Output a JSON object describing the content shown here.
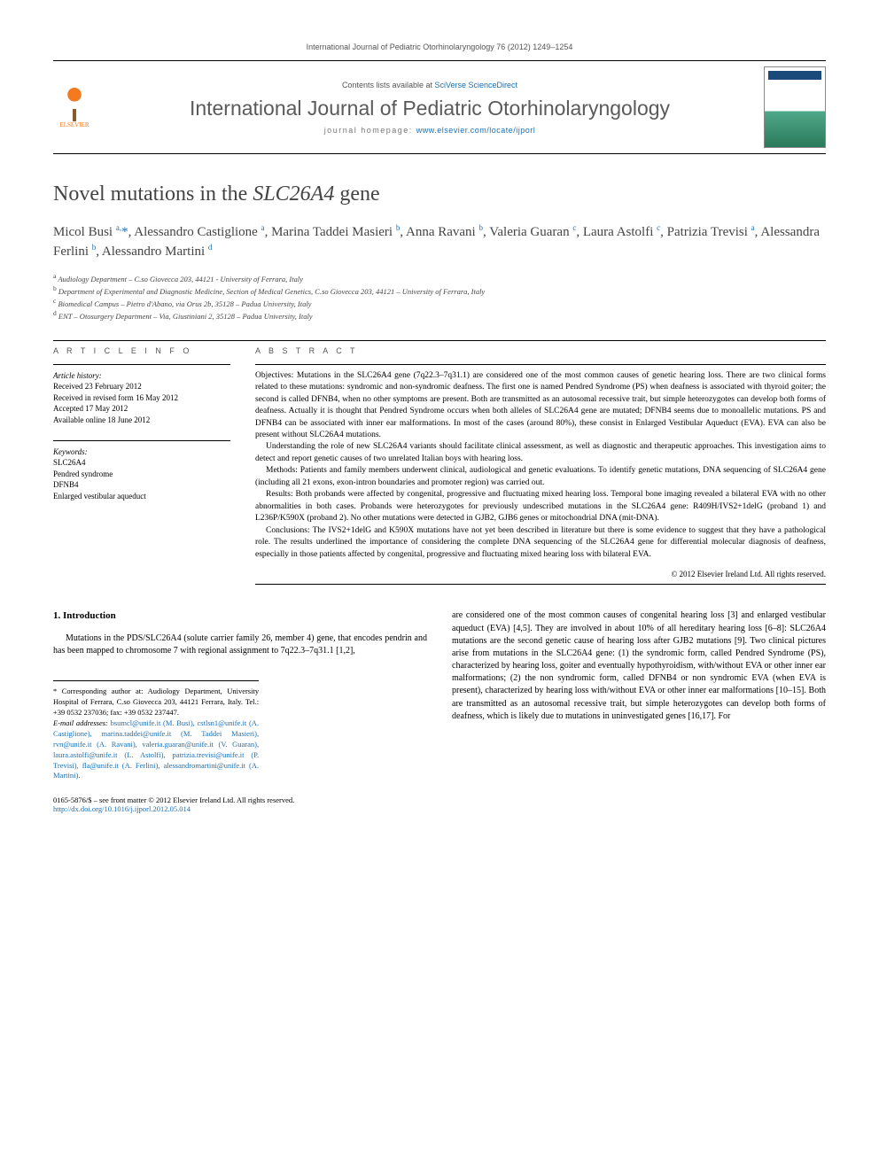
{
  "journal_header": "International Journal of Pediatric Otorhinolaryngology 76 (2012) 1249–1254",
  "masthead": {
    "contents_prefix": "Contents lists available at ",
    "contents_link": "SciVerse ScienceDirect",
    "journal_title": "International Journal of Pediatric Otorhinolaryngology",
    "homepage_prefix": "journal homepage: ",
    "homepage_link": "www.elsevier.com/locate/ijporl",
    "publisher": "ELSEVIER"
  },
  "title_plain": "Novel mutations in the ",
  "title_gene": "SLC26A4",
  "title_suffix": " gene",
  "authors_html": "Micol Busi <sup>a,</sup><span class='star'>*</span>, Alessandro Castiglione <sup>a</sup>, Marina Taddei Masieri <sup>b</sup>, Anna Ravani <sup>b</sup>, Valeria Guaran <sup>c</sup>, Laura Astolfi <sup>c</sup>, Patrizia Trevisi <sup>a</sup>, Alessandra Ferlini <sup>b</sup>, Alessandro Martini <sup>d</sup>",
  "affiliations": [
    "a Audiology Department – C.so Giovecca 203, 44121 - University of Ferrara, Italy",
    "b Department of Experimental and Diagnostic Medicine, Section of Medical Genetics, C.so Giovecca 203, 44121 – University of Ferrara, Italy",
    "c Biomedical Campus – Pietro d'Abano, via Orus 2b, 35128 – Padua University, Italy",
    "d ENT – Otosurgery Department – Via, Giustiniani 2, 35128 – Padua University, Italy"
  ],
  "article_info": {
    "heading": "A R T I C L E   I N F O",
    "history_label": "Article history:",
    "history": [
      "Received 23 February 2012",
      "Received in revised form 16 May 2012",
      "Accepted 17 May 2012",
      "Available online 18 June 2012"
    ],
    "keywords_label": "Keywords:",
    "keywords": [
      "SLC26A4",
      "Pendred syndrome",
      "DFNB4",
      "Enlarged vestibular aqueduct"
    ]
  },
  "abstract": {
    "heading": "A B S T R A C T",
    "objectives": "Objectives: Mutations in the SLC26A4 gene (7q22.3–7q31.1) are considered one of the most common causes of genetic hearing loss. There are two clinical forms related to these mutations: syndromic and non-syndromic deafness. The first one is named Pendred Syndrome (PS) when deafness is associated with thyroid goiter; the second is called DFNB4, when no other symptoms are present. Both are transmitted as an autosomal recessive trait, but simple heterozygotes can develop both forms of deafness. Actually it is thought that Pendred Syndrome occurs when both alleles of SLC26A4 gene are mutated; DFNB4 seems due to monoallelic mutations. PS and DFNB4 can be associated with inner ear malformations. In most of the cases (around 80%), these consist in Enlarged Vestibular Aqueduct (EVA). EVA can also be present without SLC26A4 mutations.",
    "objectives2": "Understanding the role of new SLC26A4 variants should facilitate clinical assessment, as well as diagnostic and therapeutic approaches. This investigation aims to detect and report genetic causes of two unrelated Italian boys with hearing loss.",
    "methods": "Methods: Patients and family members underwent clinical, audiological and genetic evaluations. To identify genetic mutations, DNA sequencing of SLC26A4 gene (including all 21 exons, exon-intron boundaries and promoter region) was carried out.",
    "results": "Results: Both probands were affected by congenital, progressive and fluctuating mixed hearing loss. Temporal bone imaging revealed a bilateral EVA with no other abnormalities in both cases. Probands were heterozygotes for previously undescribed mutations in the SLC26A4 gene: R409H/IVS2+1delG (proband 1) and L236P/K590X (proband 2). No other mutations were detected in GJB2, GJB6 genes or mitochondrial DNA (mit-DNA).",
    "conclusions": "Conclusions: The IVS2+1delG and K590X mutations have not yet been described in literature but there is some evidence to suggest that they have a pathological role. The results underlined the importance of considering the complete DNA sequencing of the SLC26A4 gene for differential molecular diagnosis of deafness, especially in those patients affected by congenital, progressive and fluctuating mixed hearing loss with bilateral EVA.",
    "copyright": "© 2012 Elsevier Ireland Ltd. All rights reserved."
  },
  "body": {
    "intro_heading": "1. Introduction",
    "intro_col1": "Mutations in the PDS/SLC26A4 (solute carrier family 26, member 4) gene, that encodes pendrin and has been mapped to chromosome 7 with regional assignment to 7q22.3–7q31.1 [1,2],",
    "intro_col2": "are considered one of the most common causes of congenital hearing loss [3] and enlarged vestibular aqueduct (EVA) [4,5]. They are involved in about 10% of all hereditary hearing loss [6–8]: SLC26A4 mutations are the second genetic cause of hearing loss after GJB2 mutations [9]. Two clinical pictures arise from mutations in the SLC26A4 gene: (1) the syndromic form, called Pendred Syndrome (PS), characterized by hearing loss, goiter and eventually hypothyroidism, with/without EVA or other inner ear malformations; (2) the non syndromic form, called DFNB4 or non syndromic EVA (when EVA is present), characterized by hearing loss with/without EVA or other inner ear malformations [10–15]. Both are transmitted as an autosomal recessive trait, but simple heterozygotes can develop both forms of deafness, which is likely due to mutations in uninvestigated genes [16,17]. For"
  },
  "footnotes": {
    "corresponding": "* Corresponding author at: Audiology Department, University Hospital of Ferrara, C.so Giovecca 203, 44121 Ferrara, Italy. Tel.: +39 0532 237036; fax: +39 0532 237447.",
    "emails_label": "E-mail addresses: ",
    "emails": "bsumcl@unife.it (M. Busi), cstlsn1@unife.it (A. Castiglione), marina.taddei@unife.it (M. Taddei Masieri), rvn@unife.it (A. Ravani), valeria.guaran@unife.it (V. Guaran), laura.astolfi@unife.it (L. Astolfi), patrizia.trevisi@unife.it (P. Trevisi), fla@unife.it (A. Ferlini), alessandromartini@unife.it (A. Martini)."
  },
  "footer": {
    "issn": "0165-5876/$ – see front matter © 2012 Elsevier Ireland Ltd. All rights reserved.",
    "doi": "http://dx.doi.org/10.1016/j.ijporl.2012.05.014"
  },
  "colors": {
    "link": "#1a6fb5",
    "text": "#000000",
    "muted": "#555555",
    "elsevier_orange": "#f47a20"
  }
}
